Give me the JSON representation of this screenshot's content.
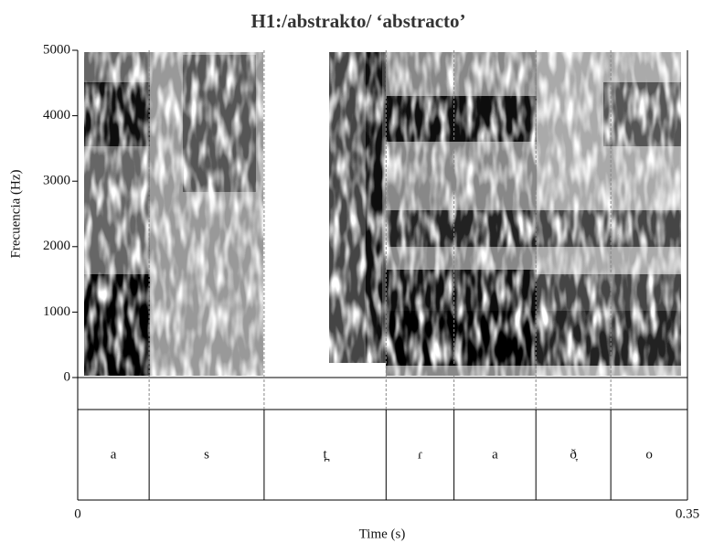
{
  "chart_data": {
    "type": "spectrogram",
    "title": "H1:/abstrakto/ ‘abstracto’",
    "ylabel": "Frecuencia (Hz)",
    "xlabel": "Time (s)",
    "ylim": [
      0,
      5000
    ],
    "yticks": [
      0,
      1000,
      2000,
      3000,
      4000,
      5000
    ],
    "xlim": [
      0,
      0.35
    ],
    "xticks": [
      0,
      0.35
    ],
    "tier": {
      "labels": [
        "a",
        "s",
        "t̪",
        "ɾ",
        "a",
        "ð̞",
        "o"
      ],
      "boundaries": [
        0.041,
        0.107,
        0.177,
        0.216,
        0.263,
        0.306
      ]
    }
  }
}
